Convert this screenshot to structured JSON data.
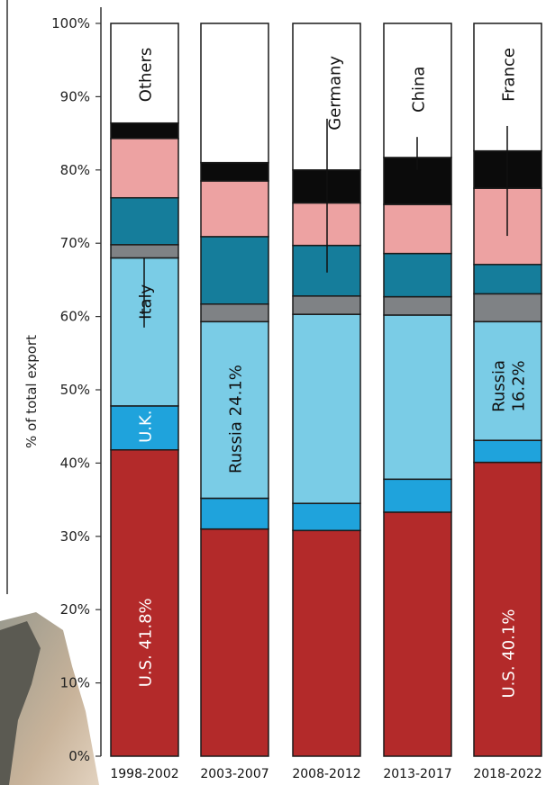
{
  "chart_data": {
    "type": "bar",
    "stacked": true,
    "ylabel": "% of total export",
    "ylim": [
      0,
      100
    ],
    "yticks": [
      "0%",
      "10%",
      "20%",
      "30%",
      "40%",
      "50%",
      "60%",
      "70%",
      "80%",
      "90%",
      "100%"
    ],
    "categories": [
      "1998-2002",
      "2003-2007",
      "2008-2012",
      "2013-2017",
      "2018-2022"
    ],
    "series": [
      {
        "name": "U.S.",
        "color": "#b32a2a",
        "values": [
          41.8,
          31.0,
          30.8,
          33.3,
          40.1
        ]
      },
      {
        "name": "U.K.",
        "color": "#1fa3dc",
        "values": [
          6.0,
          4.2,
          3.7,
          4.5,
          3.0
        ]
      },
      {
        "name": "Russia",
        "color": "#7acce6",
        "values": [
          20.2,
          24.1,
          25.8,
          22.4,
          16.2
        ]
      },
      {
        "name": "Italy",
        "color": "#7f8285",
        "values": [
          1.8,
          2.4,
          2.5,
          2.5,
          3.8
        ]
      },
      {
        "name": "",
        "color": "#157d9b",
        "values": [
          6.4,
          9.2,
          6.9,
          5.9,
          4.0
        ]
      },
      {
        "name": "Germany",
        "color": "#eda2a2",
        "values": [
          8.1,
          7.6,
          5.8,
          6.7,
          10.4
        ]
      },
      {
        "name": "China",
        "color": "#0b0b0b",
        "values": [
          2.1,
          2.5,
          4.5,
          6.4,
          5.1
        ]
      },
      {
        "name": "Others",
        "color": "#ffffff",
        "values": [
          13.6,
          19.0,
          20.0,
          18.3,
          17.4
        ]
      }
    ],
    "annotations": [
      {
        "text": "Others",
        "bar": 0,
        "y": 93,
        "color": "dark"
      },
      {
        "text": "Italy",
        "bar": 0,
        "y": 62,
        "color": "dark"
      },
      {
        "text": "U.K.",
        "bar": 0,
        "y": 45.0,
        "color": "white"
      },
      {
        "text": "U.S. 41.8%",
        "bar": 0,
        "y": 15.5,
        "color": "white"
      },
      {
        "text": "Russia 24.1%",
        "bar": 1,
        "y": 46.0,
        "color": "dark"
      },
      {
        "text": "Germany",
        "bar": 2,
        "y": 90.5,
        "color": "dark"
      },
      {
        "text": "China",
        "bar": 3,
        "y": 91.0,
        "color": "dark"
      },
      {
        "text": "Russia",
        "bar": 4,
        "y": 50.5,
        "color": "dark"
      },
      {
        "text": "16.2%",
        "bar": 4,
        "y": 50.5,
        "color": "dark"
      },
      {
        "text": "France",
        "bar": 4,
        "y": 93.0,
        "color": "dark"
      },
      {
        "text": "U.S. 40.1%",
        "bar": 4,
        "y": 14.0,
        "color": "white"
      }
    ]
  }
}
